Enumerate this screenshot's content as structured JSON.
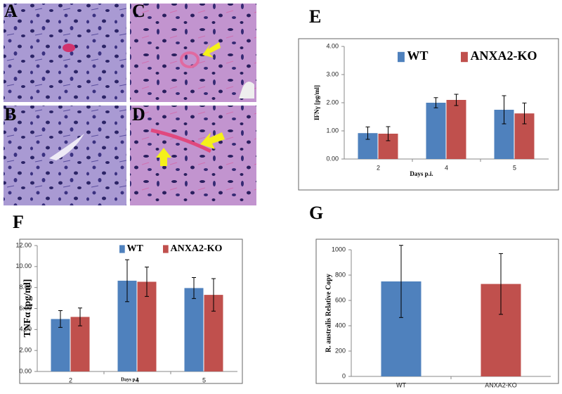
{
  "panel_labels": [
    "A",
    "B",
    "C",
    "D",
    "E",
    "F",
    "G"
  ],
  "chart_data": [
    {
      "type": "bar",
      "categories": [
        "2",
        "4",
        "5"
      ],
      "x_label": "Days p.i.",
      "y_label": "IFNγ [pg/ml]",
      "series": [
        {
          "name": "WT",
          "color": "#4f81bd",
          "values": [
            0.92,
            2.0,
            1.75
          ],
          "errors": [
            0.22,
            0.18,
            0.5
          ]
        },
        {
          "name": "ANXA2-KO",
          "color": "#c0504d",
          "values": [
            0.9,
            2.1,
            1.62
          ],
          "errors": [
            0.25,
            0.2,
            0.37
          ]
        }
      ],
      "ylim": [
        0,
        4
      ],
      "yticks": [
        {
          "value": 0,
          "label": "0.00"
        },
        {
          "value": 1,
          "label": "1.00"
        },
        {
          "value": 2,
          "label": "2.00"
        },
        {
          "value": 3,
          "label": "3.00"
        },
        {
          "value": 4,
          "label": "4.00"
        }
      ],
      "legend": "top"
    },
    {
      "type": "bar",
      "categories": [
        "2",
        "4",
        "5"
      ],
      "x_label": "Days p.i.",
      "y_label": "TNFα [pg/ml]",
      "series": [
        {
          "name": "WT",
          "color": "#4f81bd",
          "values": [
            5.0,
            8.65,
            7.95
          ],
          "errors": [
            0.8,
            2.0,
            1.0
          ]
        },
        {
          "name": "ANXA2-KO",
          "color": "#c0504d",
          "values": [
            5.2,
            8.55,
            7.3
          ],
          "errors": [
            0.85,
            1.4,
            1.55
          ]
        }
      ],
      "ylim": [
        0,
        12
      ],
      "yticks": [
        {
          "value": 0,
          "label": "0.00"
        },
        {
          "value": 2,
          "label": "2.00"
        },
        {
          "value": 4,
          "label": "4.00"
        },
        {
          "value": 6,
          "label": "6.00"
        },
        {
          "value": 8,
          "label": "8.00"
        },
        {
          "value": 10,
          "label": "10.00"
        },
        {
          "value": 12,
          "label": "12.00"
        }
      ],
      "legend": "top"
    },
    {
      "type": "bar",
      "categories": [
        "WT",
        "ANXA2-KO"
      ],
      "y_label": "R. australis Relative Copy",
      "values": [
        750,
        730
      ],
      "errors": [
        285,
        240
      ],
      "colors": [
        "#4f81bd",
        "#c0504d"
      ],
      "ylim": [
        0,
        1000
      ],
      "yticks": [
        0,
        200,
        400,
        600,
        800,
        1000
      ]
    }
  ]
}
